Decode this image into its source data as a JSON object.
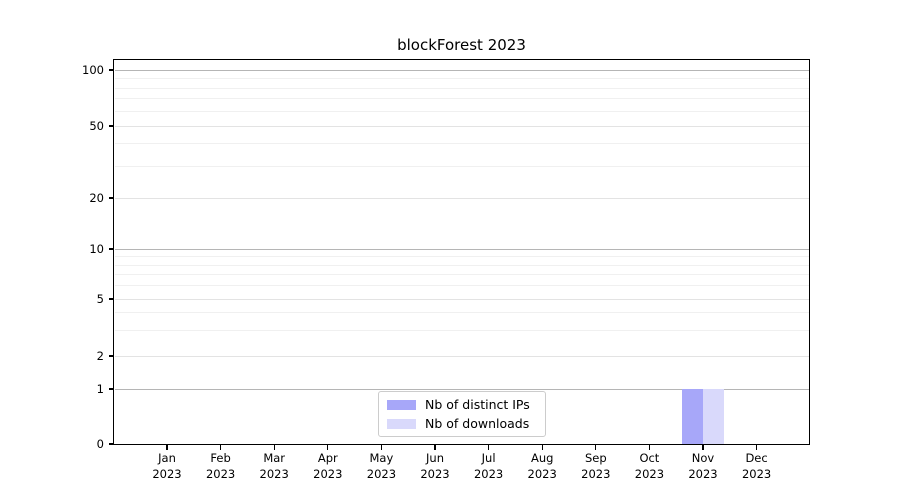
{
  "title": "blockForest 2023",
  "legend": {
    "items": [
      {
        "label": "Nb of distinct IPs",
        "color": "#a7a7f9"
      },
      {
        "label": "Nb of downloads",
        "color": "#d9d9fb"
      }
    ],
    "position": "lower center"
  },
  "colors": {
    "bar_distinct_ips": "#a7a7f9",
    "bar_downloads": "#d9d9fb",
    "grid_major": "#b5b5b5",
    "grid_minor": "#f0f0f0",
    "axis": "#000000"
  },
  "chart_data": {
    "type": "bar",
    "title": "blockForest 2023",
    "categories": [
      "Jan 2023",
      "Feb 2023",
      "Mar 2023",
      "Apr 2023",
      "May 2023",
      "Jun 2023",
      "Jul 2023",
      "Aug 2023",
      "Sep 2023",
      "Oct 2023",
      "Nov 2023",
      "Dec 2023"
    ],
    "series": [
      {
        "name": "Nb of distinct IPs",
        "color": "#a7a7f9",
        "values": [
          0,
          0,
          0,
          0,
          0,
          0,
          0,
          0,
          0,
          0,
          1,
          0
        ]
      },
      {
        "name": "Nb of downloads",
        "color": "#d9d9fb",
        "values": [
          0,
          0,
          0,
          0,
          0,
          0,
          0,
          0,
          0,
          0,
          1,
          0
        ]
      }
    ],
    "xlabel": "",
    "ylabel": "",
    "yscale": "symlog",
    "y_ticks": [
      0,
      1,
      2,
      5,
      10,
      20,
      50,
      100
    ],
    "ylim": [
      0,
      115
    ],
    "grid": true,
    "legend_position": "lower center"
  }
}
